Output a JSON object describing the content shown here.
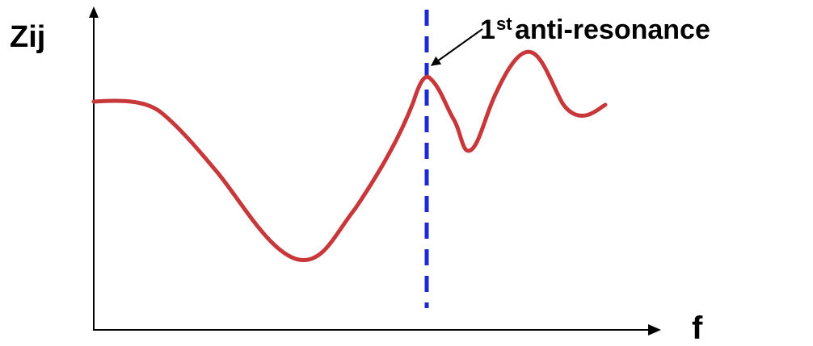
{
  "labels": {
    "y_axis": "Zij",
    "x_axis": "f",
    "annotation_number": "1",
    "annotation_superscript": "st",
    "annotation_text": "anti-resonance"
  },
  "colors": {
    "curve": "#c8383a",
    "marker_line": "#1a2bd6",
    "axes": "#000000",
    "text": "#000000"
  },
  "annotation": {
    "arrow_target": "first local maximum of the curve",
    "marker_style": "dashed vertical line"
  }
}
